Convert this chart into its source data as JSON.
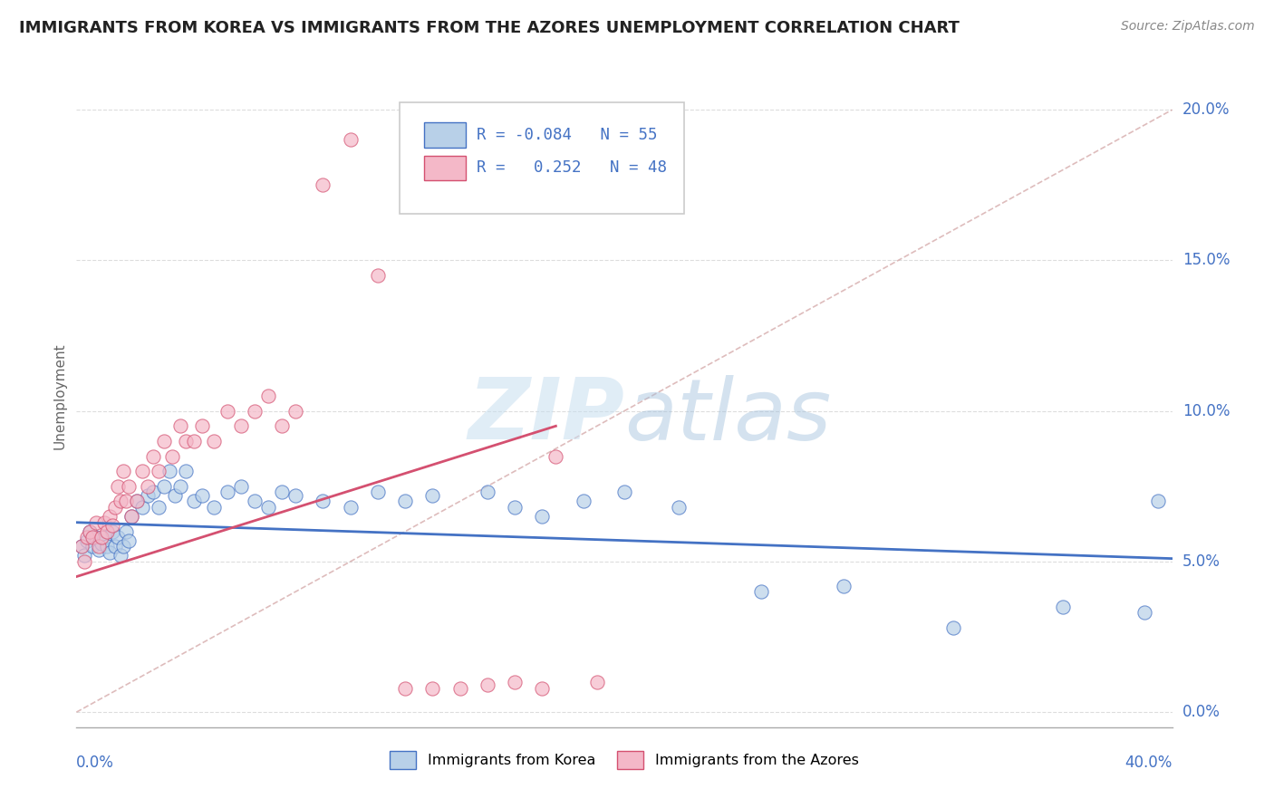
{
  "title": "IMMIGRANTS FROM KOREA VS IMMIGRANTS FROM THE AZORES UNEMPLOYMENT CORRELATION CHART",
  "source": "Source: ZipAtlas.com",
  "ylabel": "Unemployment",
  "xlim": [
    0.0,
    0.4
  ],
  "ylim": [
    -0.005,
    0.215
  ],
  "legend_r_korea": "-0.084",
  "legend_n_korea": "55",
  "legend_r_azores": "0.252",
  "legend_n_azores": "48",
  "korea_color": "#b8d0e8",
  "korea_line_color": "#4472c4",
  "azores_color": "#f4b8c8",
  "azores_line_color": "#d45070",
  "korea_trend": [
    0.063,
    0.051
  ],
  "azores_trend": [
    0.045,
    0.095
  ],
  "korea_x": [
    0.002,
    0.003,
    0.004,
    0.005,
    0.006,
    0.007,
    0.008,
    0.009,
    0.01,
    0.011,
    0.012,
    0.013,
    0.014,
    0.015,
    0.016,
    0.017,
    0.018,
    0.019,
    0.02,
    0.022,
    0.024,
    0.026,
    0.028,
    0.03,
    0.032,
    0.034,
    0.036,
    0.038,
    0.04,
    0.043,
    0.046,
    0.05,
    0.055,
    0.06,
    0.065,
    0.07,
    0.075,
    0.08,
    0.09,
    0.1,
    0.11,
    0.12,
    0.13,
    0.15,
    0.16,
    0.17,
    0.185,
    0.2,
    0.22,
    0.25,
    0.28,
    0.32,
    0.36,
    0.39,
    0.395
  ],
  "korea_y": [
    0.055,
    0.052,
    0.057,
    0.06,
    0.055,
    0.058,
    0.054,
    0.056,
    0.058,
    0.055,
    0.053,
    0.06,
    0.055,
    0.058,
    0.052,
    0.055,
    0.06,
    0.057,
    0.065,
    0.07,
    0.068,
    0.072,
    0.073,
    0.068,
    0.075,
    0.08,
    0.072,
    0.075,
    0.08,
    0.07,
    0.072,
    0.068,
    0.073,
    0.075,
    0.07,
    0.068,
    0.073,
    0.072,
    0.07,
    0.068,
    0.073,
    0.07,
    0.072,
    0.073,
    0.068,
    0.065,
    0.07,
    0.073,
    0.068,
    0.04,
    0.042,
    0.028,
    0.035,
    0.033,
    0.07
  ],
  "azores_x": [
    0.002,
    0.003,
    0.004,
    0.005,
    0.006,
    0.007,
    0.008,
    0.009,
    0.01,
    0.011,
    0.012,
    0.013,
    0.014,
    0.015,
    0.016,
    0.017,
    0.018,
    0.019,
    0.02,
    0.022,
    0.024,
    0.026,
    0.028,
    0.03,
    0.032,
    0.035,
    0.038,
    0.04,
    0.043,
    0.046,
    0.05,
    0.055,
    0.06,
    0.065,
    0.07,
    0.075,
    0.08,
    0.09,
    0.1,
    0.11,
    0.12,
    0.13,
    0.14,
    0.15,
    0.16,
    0.17,
    0.175,
    0.19
  ],
  "azores_y": [
    0.055,
    0.05,
    0.058,
    0.06,
    0.058,
    0.063,
    0.055,
    0.058,
    0.063,
    0.06,
    0.065,
    0.062,
    0.068,
    0.075,
    0.07,
    0.08,
    0.07,
    0.075,
    0.065,
    0.07,
    0.08,
    0.075,
    0.085,
    0.08,
    0.09,
    0.085,
    0.095,
    0.09,
    0.09,
    0.095,
    0.09,
    0.1,
    0.095,
    0.1,
    0.105,
    0.095,
    0.1,
    0.175,
    0.19,
    0.145,
    0.008,
    0.008,
    0.008,
    0.009,
    0.01,
    0.008,
    0.085,
    0.01
  ],
  "diag_color": "#d0a0a0",
  "grid_color": "#dddddd"
}
